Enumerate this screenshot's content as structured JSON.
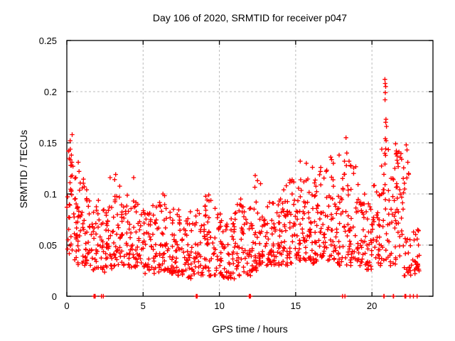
{
  "chart_data": {
    "type": "scatter",
    "title": "Day 106 of 2020, SRMTID for receiver p047",
    "xlabel": "GPS time / hours",
    "ylabel": "SRMTID / TECUs",
    "xlim": [
      0,
      24
    ],
    "ylim": [
      0,
      0.25
    ],
    "xticks": [
      {
        "v": 0,
        "label": "0"
      },
      {
        "v": 5,
        "label": "5"
      },
      {
        "v": 10,
        "label": "10"
      },
      {
        "v": 15,
        "label": "15"
      },
      {
        "v": 20,
        "label": "20"
      }
    ],
    "yticks": [
      {
        "v": 0,
        "label": "0"
      },
      {
        "v": 0.05,
        "label": "0.05"
      },
      {
        "v": 0.1,
        "label": "0.1"
      },
      {
        "v": 0.15,
        "label": "0.15"
      },
      {
        "v": 0.2,
        "label": "0.2"
      },
      {
        "v": 0.25,
        "label": "0.25"
      }
    ],
    "grid": true,
    "legend": false,
    "marker": "plus",
    "colors": {
      "marker": "#ff0000",
      "grid": "#bbbbbb",
      "axis": "#000000",
      "background": "#ffffff"
    },
    "scatter": {
      "seed": 20200106,
      "outliers": [
        [
          0.35,
          0.158
        ],
        [
          0.22,
          0.152
        ],
        [
          0.3,
          0.138
        ],
        [
          0.33,
          0.131
        ],
        [
          0.25,
          0.128
        ],
        [
          0.4,
          0.127
        ],
        [
          0.75,
          0.131
        ],
        [
          0.8,
          0.122
        ],
        [
          1.15,
          0.107
        ],
        [
          1.3,
          0.104
        ],
        [
          2.84,
          0.116
        ],
        [
          3.2,
          0.119
        ],
        [
          4.38,
          0.116
        ],
        [
          6.3,
          0.1
        ],
        [
          9.3,
          0.099
        ],
        [
          11.4,
          0.095
        ],
        [
          12.35,
          0.118
        ],
        [
          12.5,
          0.113
        ],
        [
          12.7,
          0.11
        ],
        [
          15.3,
          0.132
        ],
        [
          15.7,
          0.13
        ],
        [
          16.1,
          0.126
        ],
        [
          17.0,
          0.122
        ],
        [
          17.3,
          0.136
        ],
        [
          17.85,
          0.138
        ],
        [
          18.2,
          0.132
        ],
        [
          18.3,
          0.155
        ],
        [
          18.35,
          0.14
        ],
        [
          18.5,
          0.132
        ],
        [
          18.6,
          0.128
        ],
        [
          20.85,
          0.212
        ],
        [
          20.87,
          0.208
        ],
        [
          20.9,
          0.205
        ],
        [
          20.88,
          0.199
        ],
        [
          20.86,
          0.192
        ],
        [
          20.92,
          0.173
        ],
        [
          20.9,
          0.17
        ],
        [
          20.95,
          0.166
        ],
        [
          20.88,
          0.154
        ],
        [
          20.93,
          0.152
        ],
        [
          20.9,
          0.144
        ],
        [
          21.55,
          0.149
        ],
        [
          21.6,
          0.142
        ],
        [
          21.62,
          0.14
        ],
        [
          21.58,
          0.139
        ],
        [
          21.65,
          0.137
        ],
        [
          21.7,
          0.13
        ],
        [
          21.5,
          0.125
        ],
        [
          22.25,
          0.148
        ],
        [
          22.3,
          0.143
        ],
        [
          22.35,
          0.131
        ],
        [
          22.4,
          0.12
        ],
        [
          23.0,
          0.065
        ],
        [
          23.05,
          0.05
        ],
        [
          23.1,
          0.04
        ]
      ],
      "zeros": [
        1.78,
        1.8,
        1.82,
        1.84,
        1.86,
        2.27,
        2.39,
        8.48,
        8.5,
        8.52,
        8.54,
        11.96,
        11.98,
        12.0,
        12.02,
        12.04,
        18.07,
        18.23,
        20.78,
        20.8,
        21.4,
        21.42,
        22.16,
        22.18,
        22.2,
        22.22,
        22.5,
        22.72,
        22.96
      ],
      "bands": [
        [
          0.0,
          0.3,
          24,
          0.04,
          0.155,
          1.2
        ],
        [
          0.3,
          0.7,
          22,
          0.035,
          0.13,
          1.5
        ],
        [
          0.7,
          1.1,
          26,
          0.03,
          0.115,
          1.5
        ],
        [
          1.1,
          1.6,
          28,
          0.028,
          0.105,
          1.4
        ],
        [
          1.6,
          2.1,
          28,
          0.025,
          0.095,
          1.5
        ],
        [
          2.1,
          2.6,
          26,
          0.022,
          0.09,
          1.6
        ],
        [
          2.6,
          3.1,
          28,
          0.025,
          0.105,
          1.6
        ],
        [
          3.1,
          3.6,
          28,
          0.03,
          0.115,
          1.5
        ],
        [
          3.6,
          4.1,
          28,
          0.03,
          0.1,
          1.5
        ],
        [
          4.1,
          4.6,
          26,
          0.028,
          0.1,
          1.5
        ],
        [
          4.6,
          5.1,
          26,
          0.025,
          0.09,
          1.5
        ],
        [
          5.1,
          5.6,
          26,
          0.022,
          0.085,
          1.5
        ],
        [
          5.6,
          6.1,
          28,
          0.022,
          0.092,
          1.5
        ],
        [
          6.1,
          6.6,
          28,
          0.025,
          0.1,
          1.5
        ],
        [
          6.6,
          7.1,
          28,
          0.022,
          0.09,
          1.5
        ],
        [
          7.1,
          7.6,
          28,
          0.02,
          0.085,
          1.5
        ],
        [
          7.6,
          8.1,
          26,
          0.018,
          0.08,
          1.5
        ],
        [
          8.1,
          8.6,
          26,
          0.016,
          0.085,
          1.5
        ],
        [
          8.6,
          9.1,
          26,
          0.02,
          0.09,
          1.5
        ],
        [
          9.1,
          9.6,
          28,
          0.02,
          0.098,
          1.5
        ],
        [
          9.6,
          10.1,
          26,
          0.02,
          0.09,
          1.6
        ],
        [
          10.1,
          10.6,
          26,
          0.016,
          0.078,
          1.5
        ],
        [
          10.6,
          11.1,
          28,
          0.016,
          0.082,
          1.5
        ],
        [
          11.1,
          11.6,
          28,
          0.02,
          0.095,
          1.5
        ],
        [
          11.6,
          12.1,
          26,
          0.02,
          0.088,
          1.5
        ],
        [
          12.1,
          12.6,
          28,
          0.025,
          0.112,
          1.6
        ],
        [
          12.6,
          13.1,
          28,
          0.03,
          0.1,
          1.5
        ],
        [
          13.1,
          13.6,
          28,
          0.03,
          0.096,
          1.4
        ],
        [
          13.6,
          14.1,
          28,
          0.03,
          0.1,
          1.4
        ],
        [
          14.1,
          14.6,
          30,
          0.03,
          0.11,
          1.5
        ],
        [
          14.6,
          15.1,
          30,
          0.032,
          0.12,
          1.5
        ],
        [
          15.1,
          15.6,
          30,
          0.035,
          0.125,
          1.4
        ],
        [
          15.6,
          16.1,
          30,
          0.035,
          0.128,
          1.4
        ],
        [
          16.1,
          16.6,
          30,
          0.032,
          0.12,
          1.4
        ],
        [
          16.6,
          17.1,
          30,
          0.032,
          0.126,
          1.4
        ],
        [
          17.1,
          17.6,
          30,
          0.035,
          0.134,
          1.4
        ],
        [
          17.6,
          18.1,
          28,
          0.03,
          0.12,
          1.4
        ],
        [
          18.1,
          18.6,
          28,
          0.026,
          0.142,
          1.4
        ],
        [
          18.6,
          19.1,
          28,
          0.03,
          0.13,
          1.4
        ],
        [
          19.1,
          19.6,
          28,
          0.03,
          0.1,
          1.5
        ],
        [
          19.6,
          20.1,
          28,
          0.026,
          0.095,
          1.5
        ],
        [
          20.1,
          20.6,
          28,
          0.03,
          0.11,
          1.5
        ],
        [
          20.6,
          21.1,
          28,
          0.035,
          0.15,
          1.3
        ],
        [
          21.1,
          21.6,
          26,
          0.03,
          0.128,
          1.4
        ],
        [
          21.6,
          22.1,
          28,
          0.032,
          0.142,
          1.2
        ],
        [
          22.1,
          22.6,
          22,
          0.02,
          0.12,
          1.8
        ],
        [
          22.6,
          23.1,
          22,
          0.02,
          0.078,
          1.5
        ]
      ]
    }
  }
}
